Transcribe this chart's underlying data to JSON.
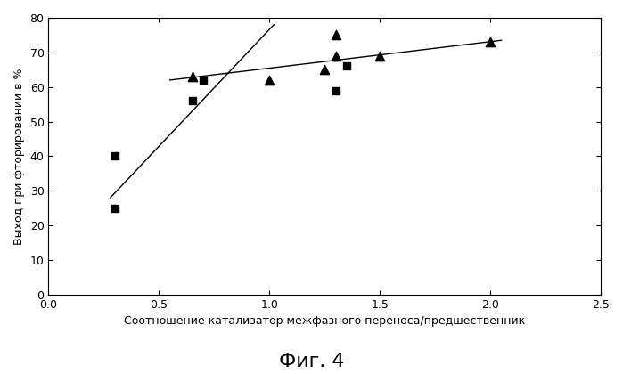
{
  "squares_x": [
    0.3,
    0.3,
    0.65,
    0.7,
    1.3,
    1.35
  ],
  "squares_y": [
    40,
    25,
    56,
    62,
    59,
    66
  ],
  "triangles_x": [
    0.65,
    1.0,
    1.25,
    1.3,
    1.3,
    1.5,
    2.0
  ],
  "triangles_y": [
    63,
    62,
    65,
    69,
    75,
    69,
    73
  ],
  "line1_x": [
    0.28,
    1.02
  ],
  "line1_y": [
    28,
    78
  ],
  "line2_x": [
    0.55,
    2.05
  ],
  "line2_y": [
    62.0,
    73.5
  ],
  "xlim": [
    0,
    2.5
  ],
  "ylim": [
    0,
    80
  ],
  "xticks": [
    0,
    0.5,
    1,
    1.5,
    2,
    2.5
  ],
  "yticks": [
    0,
    10,
    20,
    30,
    40,
    50,
    60,
    70,
    80
  ],
  "xlabel": "Соотношение катализатор межфазного переноса/предшественник",
  "ylabel": "Выход при фторировании в %",
  "fig_label": "Фиг. 4",
  "marker_color": "#000000",
  "line_color": "#000000",
  "bg_color": "#ffffff",
  "plot_bg_color": "#ffffff",
  "xlabel_fontsize": 9,
  "ylabel_fontsize": 9,
  "tick_fontsize": 9,
  "fig_label_fontsize": 16
}
